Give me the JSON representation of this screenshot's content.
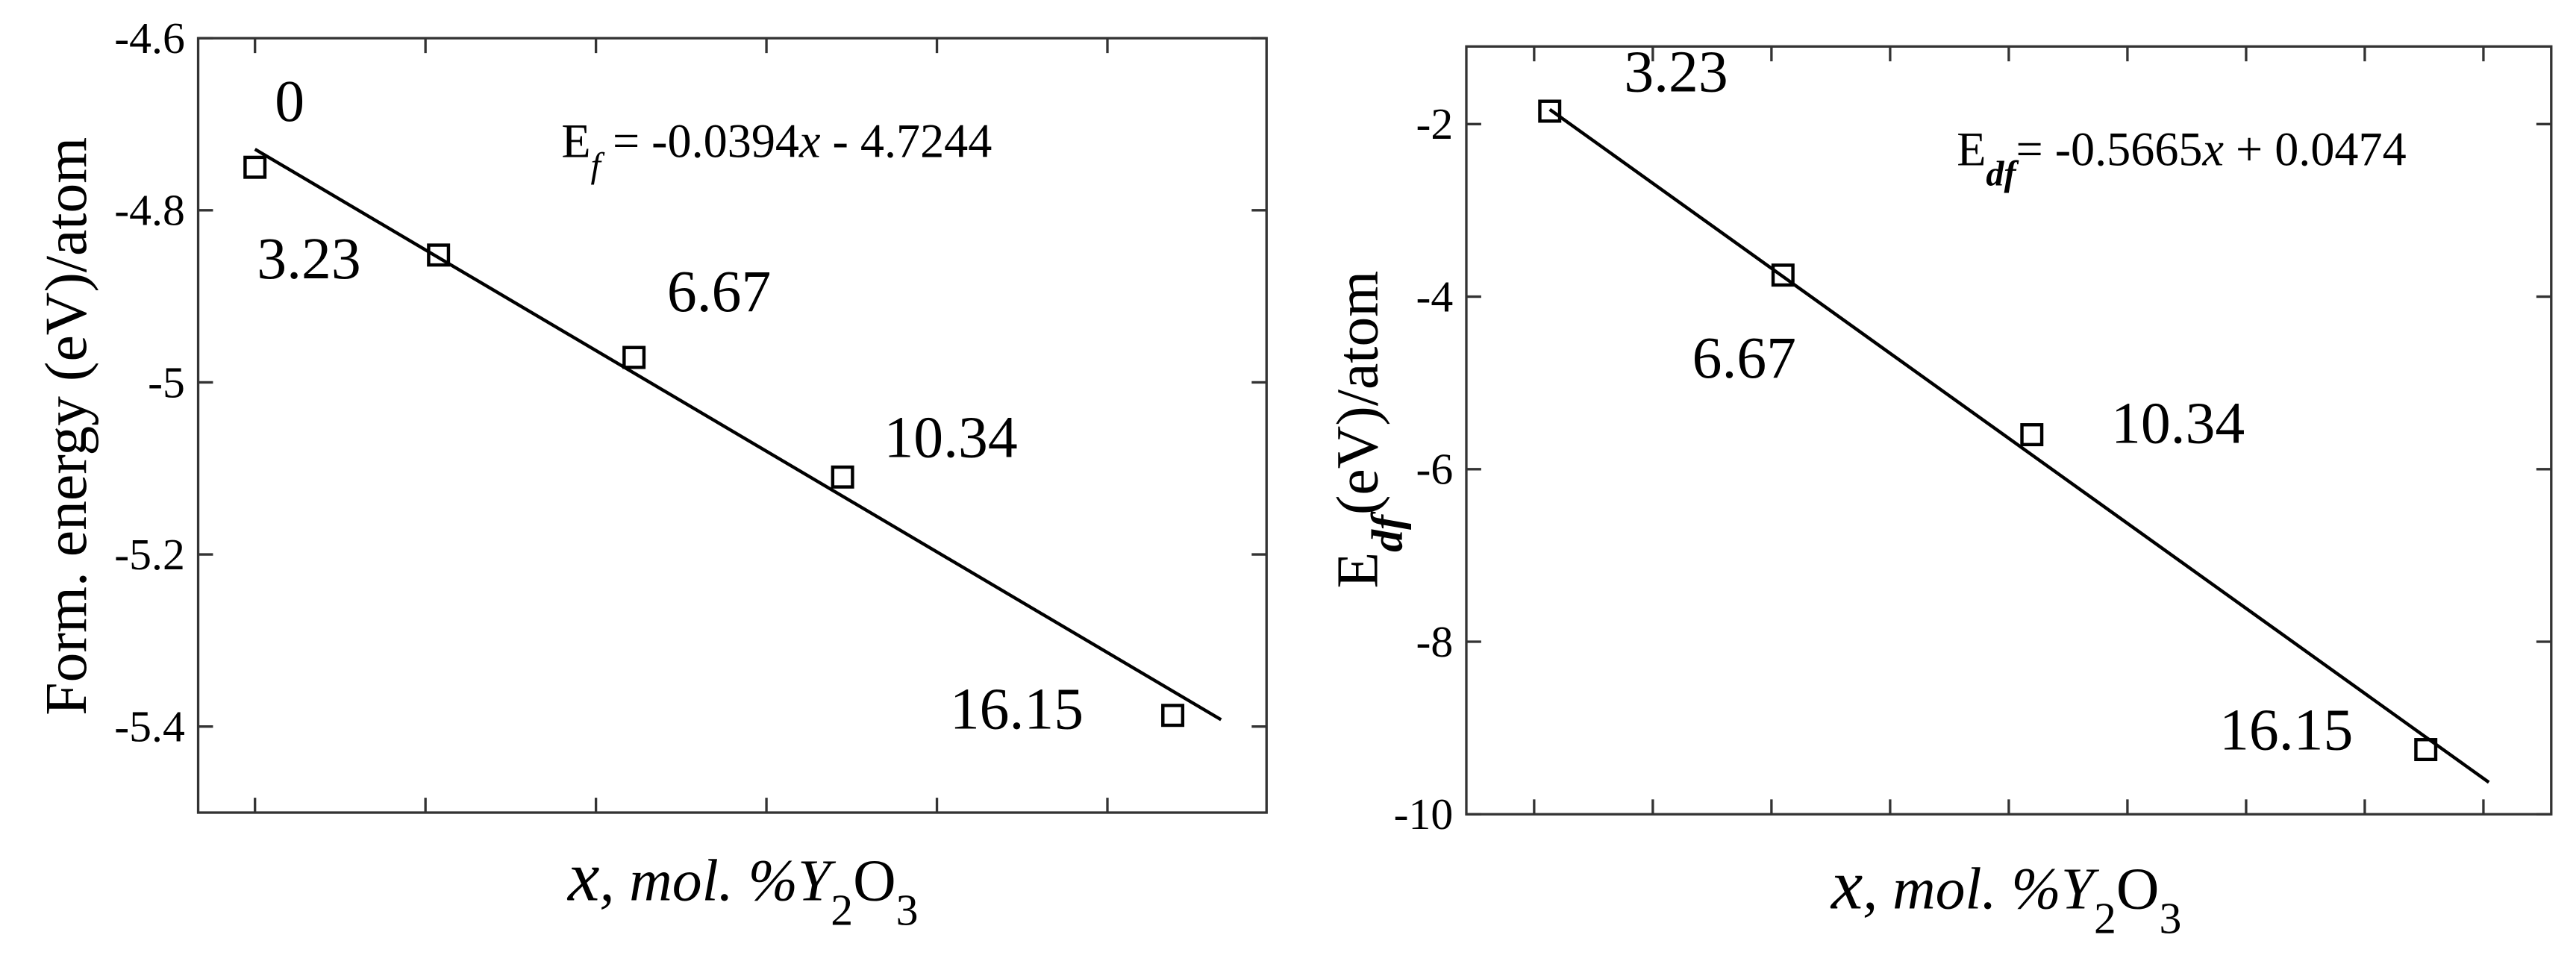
{
  "chart_data": [
    {
      "type": "scatter",
      "ylabel": "Form. energy (eV)/atom",
      "xlabel": [
        "x",
        ", mol. %Y",
        "2",
        "O",
        "3"
      ],
      "annotation": [
        "E",
        "f",
        " = -0.0394",
        "x",
        " - 4.7244"
      ],
      "xlim": [
        -1,
        17.8
      ],
      "ylim": [
        -5.5,
        -4.6
      ],
      "xticks": [
        0,
        3,
        6,
        9,
        12,
        15
      ],
      "yticks": [
        -4.6,
        -4.8,
        -5,
        -5.2,
        -5.4
      ],
      "series": [
        {
          "marker": "square",
          "color": "#000000",
          "x": [
            0,
            3.23,
            6.67,
            10.34,
            16.15
          ],
          "values": [
            -4.75,
            -4.852,
            -4.971,
            -5.11,
            -5.387
          ]
        },
        {
          "marker": "line",
          "color": "#000000",
          "x": [
            0,
            17
          ],
          "values": [
            -4.729,
            -5.392
          ]
        }
      ]
    },
    {
      "type": "scatter",
      "ylabel": [
        "E",
        "df",
        "(eV)/atom"
      ],
      "xlabel": [
        "x",
        ", mol. %Y",
        "2",
        "O",
        "3"
      ],
      "annotation": [
        "E",
        "df",
        "= -0.5665",
        "x",
        " + 0.0474"
      ],
      "xlim": [
        2,
        18
      ],
      "ylim": [
        -10,
        -1.1
      ],
      "xticks": [
        3,
        4.75,
        6.5,
        8.25,
        10,
        11.75,
        13.5,
        15.25,
        17
      ],
      "yticks": [
        -2,
        -4,
        -6,
        -8,
        -10
      ],
      "series": [
        {
          "marker": "square",
          "color": "#000000",
          "x": [
            3.23,
            6.67,
            10.34,
            16.15
          ],
          "values": [
            -1.85,
            -3.75,
            -5.6,
            -9.25
          ]
        },
        {
          "marker": "line",
          "color": "#000000",
          "x": [
            3.23,
            17.08
          ],
          "values": [
            -1.83,
            -9.63
          ]
        }
      ]
    }
  ]
}
